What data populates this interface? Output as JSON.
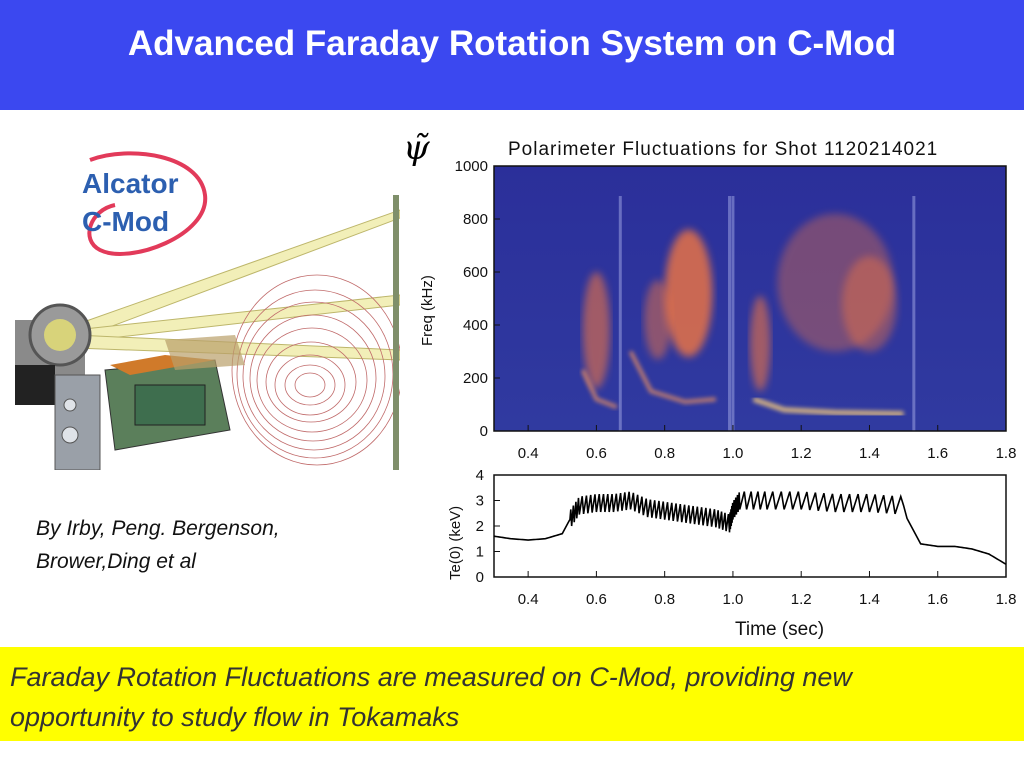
{
  "header": {
    "title": "Advanced Faraday Rotation System on C-Mod"
  },
  "logo": {
    "line1": "Alcator",
    "line2": "C-Mod"
  },
  "authors": {
    "line1": "By Irby, Peng. Bergenson,",
    "line2": "Brower,Ding et al"
  },
  "psi_symbol": "ψ̃",
  "chart_data": [
    {
      "type": "heatmap",
      "title": "Polarimeter Fluctuations for Shot 1120214021",
      "xlabel": "",
      "ylabel": "Freq (kHz)",
      "xlim": [
        0.3,
        1.8
      ],
      "ylim": [
        0,
        1000
      ],
      "x_ticks": [
        "0.4",
        "0.6",
        "0.8",
        "1.0",
        "1.2",
        "1.4",
        "1.6",
        "1.8"
      ],
      "y_ticks": [
        "0",
        "200",
        "400",
        "600",
        "800",
        "1000"
      ],
      "colors": {
        "background": "#2a2f8f",
        "hot": "#ff7a3a"
      }
    },
    {
      "type": "line",
      "title": "",
      "xlabel": "Time  (sec)",
      "ylabel": "Te(0) (keV)",
      "xlim": [
        0.3,
        1.8
      ],
      "ylim": [
        0,
        4
      ],
      "x_ticks": [
        "0.4",
        "0.6",
        "0.8",
        "1.0",
        "1.2",
        "1.4",
        "1.6",
        "1.8"
      ],
      "y_ticks": [
        "0",
        "1",
        "2",
        "3",
        "4"
      ],
      "series": [
        {
          "x": [
            0.3,
            0.35,
            0.4,
            0.45,
            0.5,
            0.52,
            0.55,
            0.6,
            0.65,
            0.7,
            0.75,
            0.8,
            0.85,
            0.9,
            0.95,
            0.99,
            1.0,
            1.02,
            1.1,
            1.2,
            1.3,
            1.4,
            1.5,
            1.51,
            1.55,
            1.6,
            1.65,
            1.7,
            1.75,
            1.8
          ],
          "y": [
            1.6,
            1.5,
            1.45,
            1.5,
            1.7,
            2.2,
            2.8,
            2.9,
            2.9,
            3.0,
            2.7,
            2.6,
            2.5,
            2.4,
            2.3,
            2.1,
            2.6,
            3.0,
            3.0,
            3.0,
            2.9,
            2.9,
            2.8,
            2.3,
            1.3,
            1.2,
            1.2,
            1.1,
            0.9,
            0.5
          ]
        }
      ]
    }
  ],
  "footer": {
    "line1": "Faraday Rotation Fluctuations are measured on C-Mod, providing new",
    "line2": "opportunity to study flow in Tokamaks"
  }
}
